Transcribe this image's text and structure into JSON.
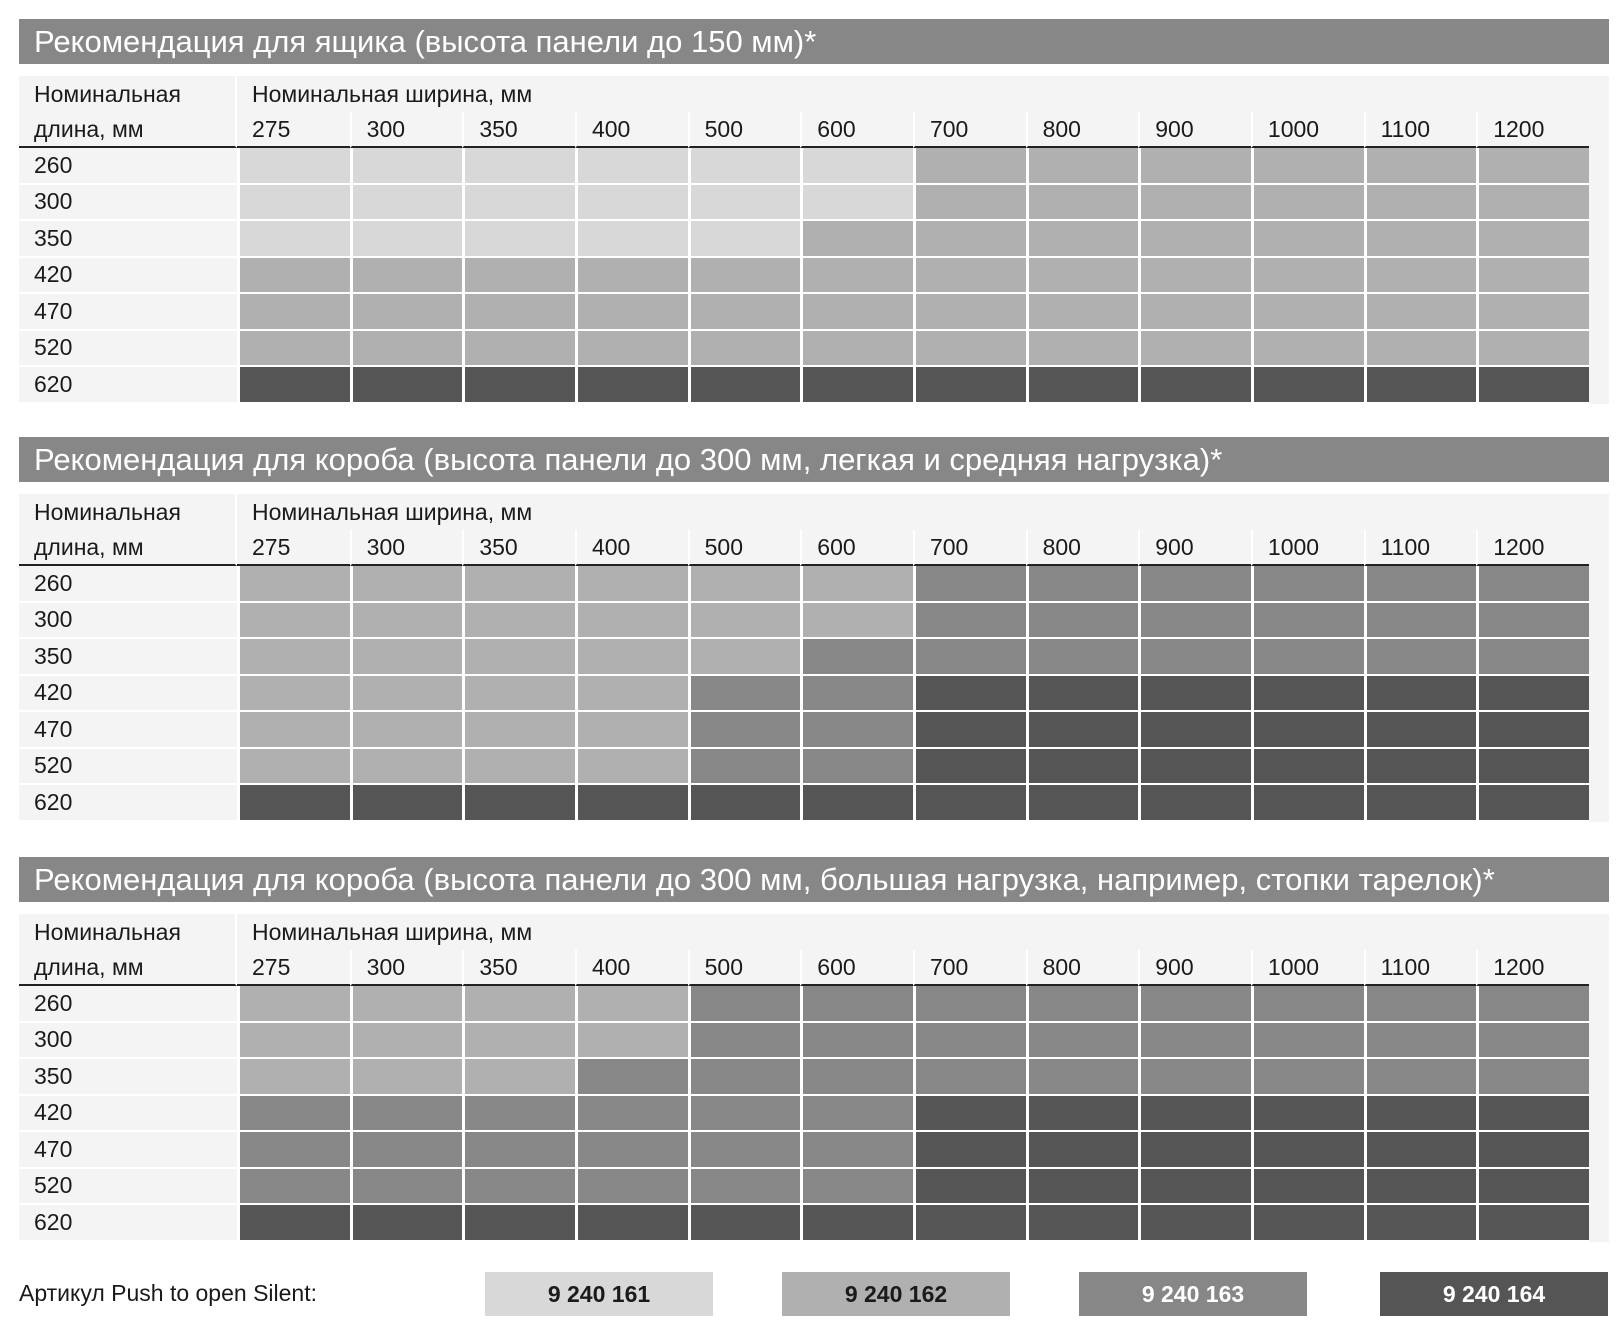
{
  "colors": {
    "c1": "#d8d8d8",
    "c2": "#b0b0b0",
    "c3": "#878787",
    "c4": "#555555",
    "title_bar": "#878787"
  },
  "widths": [
    "275",
    "300",
    "350",
    "400",
    "500",
    "600",
    "700",
    "800",
    "900",
    "1000",
    "1100",
    "1200"
  ],
  "row_label_top": "Номинальная",
  "row_label_bottom": "длина, мм",
  "width_header": "Номинальная ширина, мм",
  "tables": [
    {
      "title": "Рекомендация для ящика (высота панели до 150 мм)*",
      "rows": [
        {
          "length": "260",
          "codes": [
            1,
            1,
            1,
            1,
            1,
            1,
            2,
            2,
            2,
            2,
            2,
            2
          ]
        },
        {
          "length": "300",
          "codes": [
            1,
            1,
            1,
            1,
            1,
            1,
            2,
            2,
            2,
            2,
            2,
            2
          ]
        },
        {
          "length": "350",
          "codes": [
            1,
            1,
            1,
            1,
            1,
            2,
            2,
            2,
            2,
            2,
            2,
            2
          ]
        },
        {
          "length": "420",
          "codes": [
            2,
            2,
            2,
            2,
            2,
            2,
            2,
            2,
            2,
            2,
            2,
            2
          ]
        },
        {
          "length": "470",
          "codes": [
            2,
            2,
            2,
            2,
            2,
            2,
            2,
            2,
            2,
            2,
            2,
            2
          ]
        },
        {
          "length": "520",
          "codes": [
            2,
            2,
            2,
            2,
            2,
            2,
            2,
            2,
            2,
            2,
            2,
            2
          ]
        },
        {
          "length": "620",
          "codes": [
            4,
            4,
            4,
            4,
            4,
            4,
            4,
            4,
            4,
            4,
            4,
            4
          ]
        }
      ]
    },
    {
      "title": "Рекомендация для короба (высота панели до 300 мм, легкая и средняя нагрузка)*",
      "rows": [
        {
          "length": "260",
          "codes": [
            2,
            2,
            2,
            2,
            2,
            2,
            3,
            3,
            3,
            3,
            3,
            3
          ]
        },
        {
          "length": "300",
          "codes": [
            2,
            2,
            2,
            2,
            2,
            2,
            3,
            3,
            3,
            3,
            3,
            3
          ]
        },
        {
          "length": "350",
          "codes": [
            2,
            2,
            2,
            2,
            2,
            3,
            3,
            3,
            3,
            3,
            3,
            3
          ]
        },
        {
          "length": "420",
          "codes": [
            2,
            2,
            2,
            2,
            3,
            3,
            4,
            4,
            4,
            4,
            4,
            4
          ]
        },
        {
          "length": "470",
          "codes": [
            2,
            2,
            2,
            2,
            3,
            3,
            4,
            4,
            4,
            4,
            4,
            4
          ]
        },
        {
          "length": "520",
          "codes": [
            2,
            2,
            2,
            2,
            3,
            3,
            4,
            4,
            4,
            4,
            4,
            4
          ]
        },
        {
          "length": "620",
          "codes": [
            4,
            4,
            4,
            4,
            4,
            4,
            4,
            4,
            4,
            4,
            4,
            4
          ]
        }
      ]
    },
    {
      "title": "Рекомендация для короба (высота панели до 300 мм, большая нагрузка, например, стопки тарелок)*",
      "rows": [
        {
          "length": "260",
          "codes": [
            2,
            2,
            2,
            2,
            3,
            3,
            3,
            3,
            3,
            3,
            3,
            3
          ]
        },
        {
          "length": "300",
          "codes": [
            2,
            2,
            2,
            2,
            3,
            3,
            3,
            3,
            3,
            3,
            3,
            3
          ]
        },
        {
          "length": "350",
          "codes": [
            2,
            2,
            2,
            3,
            3,
            3,
            3,
            3,
            3,
            3,
            3,
            3
          ]
        },
        {
          "length": "420",
          "codes": [
            3,
            3,
            3,
            3,
            3,
            3,
            4,
            4,
            4,
            4,
            4,
            4
          ]
        },
        {
          "length": "470",
          "codes": [
            3,
            3,
            3,
            3,
            3,
            3,
            4,
            4,
            4,
            4,
            4,
            4
          ]
        },
        {
          "length": "520",
          "codes": [
            3,
            3,
            3,
            3,
            3,
            3,
            4,
            4,
            4,
            4,
            4,
            4
          ]
        },
        {
          "length": "620",
          "codes": [
            4,
            4,
            4,
            4,
            4,
            4,
            4,
            4,
            4,
            4,
            4,
            4
          ]
        }
      ]
    }
  ],
  "footer": {
    "label": "Артикул Push to open Silent:",
    "articles": [
      "9 240 161",
      "9 240 162",
      "9 240 163",
      "9 240 164"
    ]
  }
}
